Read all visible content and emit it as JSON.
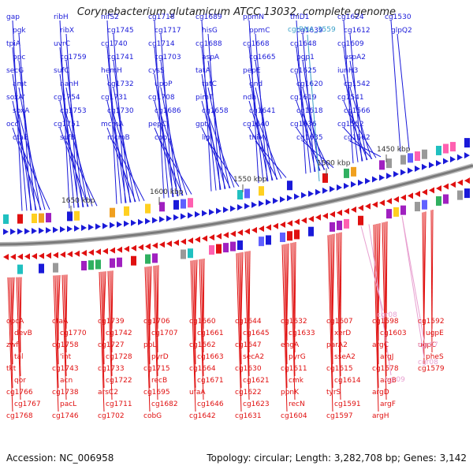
{
  "title": "Corynebacterium glutamicum ATCC 13032, complete genome",
  "footer": {
    "accession": "Accession: NC_006958",
    "summary": "Topology: circular; Length: 3,282,708 bp; Genes: 3,142"
  },
  "colors": {
    "forward": "#1a1ad9",
    "reverse": "#e01010",
    "rna": "#3aa0c8",
    "rna_reverse": "#e8a0d0",
    "backbone": "#7a7a7a"
  },
  "ticks": [
    "1650 kbp",
    "1600 kbp",
    "1550 kbp",
    "1500 kbp",
    "1450 kbp"
  ],
  "forward_genes": [
    "gap",
    "pgk",
    "tpiA",
    "ppc",
    "secG",
    "amt",
    "soxA'",
    "soxA",
    "ocd",
    "ctaB",
    "ribH",
    "ribX",
    "uvrC",
    "cg1759",
    "sufC",
    "nanH",
    "cg1754",
    "cg1753",
    "cg1751",
    "sufB",
    "nifS2",
    "cg1745",
    "cg1740",
    "cg1741",
    "hemH",
    "cg1732",
    "cg1731",
    "cg1730",
    "mcmA",
    "mcmB",
    "cg1718",
    "cg1717",
    "cg1714",
    "cg1703",
    "cysS",
    "uppP",
    "cg1708",
    "cg1686",
    "pepC",
    "cobL",
    "cg1689",
    "hisG",
    "cg1688",
    "aspA",
    "tatA",
    "tatC",
    "pimT",
    "cg1658",
    "gpt",
    "lip",
    "ppmN",
    "ppmC",
    "cg1668",
    "cg1665",
    "pepE",
    "gnd",
    "ndh",
    "cg1641",
    "cg1640",
    "thiM",
    "thiD1",
    "cg1639",
    "cg1648",
    "pgp1",
    "cg1625",
    "cg1620",
    "cg1619",
    "cg1618",
    "cg1636",
    "cg1635",
    "cg1624",
    "cg1612",
    "cg1609",
    "uspA2",
    "iunH3",
    "cg1542",
    "cg1541",
    "cg1566",
    "cg1552",
    "cg1562",
    "cg1530",
    "glpQ2"
  ],
  "rna_forward": [
    "cgtRNA_3559"
  ],
  "reverse_genes": [
    "opcA",
    "devB",
    "zwf",
    "tal",
    "tkt",
    "qor",
    "cg1766",
    "cg1767",
    "cg1768",
    "ctaA",
    "cg1770",
    "cg1758",
    "'int",
    "cg1743",
    "acn",
    "cg1738",
    "pacL",
    "cg1746",
    "cg1739",
    "cg1742",
    "cg1727",
    "cg1728",
    "cg1733",
    "cg1722",
    "arsC2",
    "cg1711",
    "cg1702",
    "cg1706",
    "cg1707",
    "ppL",
    "pyrD",
    "cg1715",
    "recB",
    "cg1695",
    "cg1682",
    "cobG",
    "cg1660",
    "cg1661",
    "cg1662",
    "cg1663",
    "cg1664",
    "cg1671",
    "ufaA",
    "cg1646",
    "cg1642",
    "cg1644",
    "cg1645",
    "cg1647",
    "secA2",
    "cg1630",
    "cg1621",
    "cg1622",
    "cg1623",
    "cg1631",
    "cg1632",
    "cg1633",
    "engA",
    "pyrG",
    "cg1611",
    "cmk",
    "ppnK",
    "recN",
    "cg1604",
    "cg1607",
    "xerD",
    "parA2",
    "sseA2",
    "cg1615",
    "cg1614",
    "tyrS",
    "cg1591",
    "cg1597",
    "cg1598",
    "cg1603",
    "argC",
    "argJ",
    "cg1578",
    "argB",
    "argD",
    "argF",
    "argH",
    "cg1592",
    "ugpE",
    "ugpC",
    "pheS",
    "cg1579"
  ],
  "rna_reverse": [
    "cgr08",
    "cgr07",
    "cgr08",
    "cgr09"
  ]
}
